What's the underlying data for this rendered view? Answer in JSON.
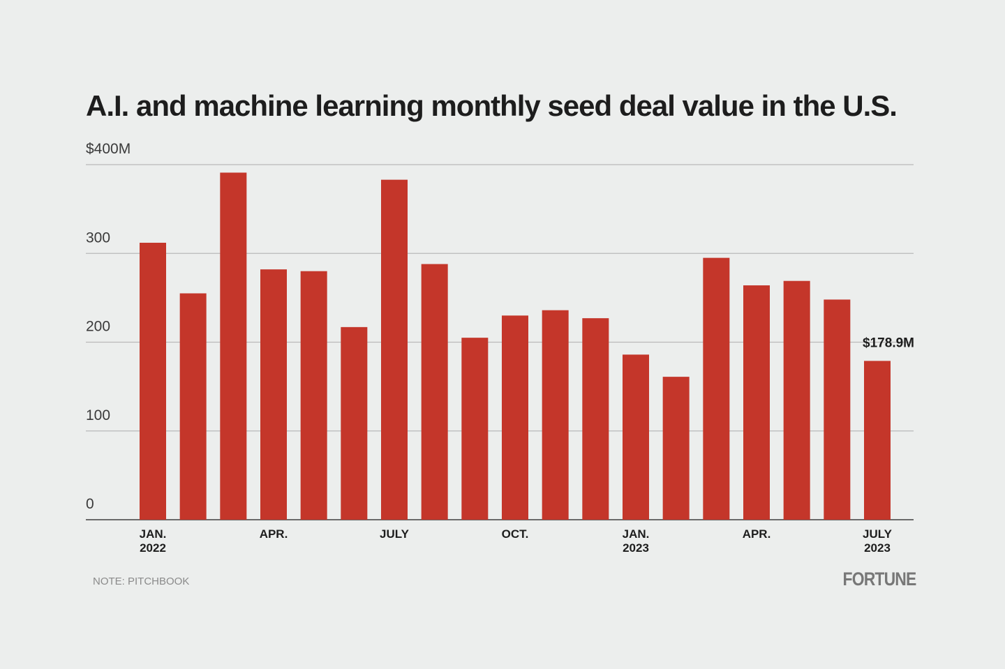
{
  "chart_data": {
    "type": "bar",
    "title": "A.I. and machine learning monthly seed deal value in the U.S.",
    "categories": [
      "JAN.\n2022",
      null,
      null,
      "APR.",
      null,
      null,
      "JULY",
      null,
      null,
      "OCT.",
      null,
      null,
      "JAN.\n2023",
      null,
      null,
      "APR.",
      null,
      null,
      "JULY\n2023"
    ],
    "values": [
      312,
      255,
      391,
      282,
      280,
      217,
      383,
      288,
      205,
      230,
      236,
      227,
      186,
      161,
      295,
      264,
      269,
      248,
      178.9
    ],
    "value_labels": [
      null,
      null,
      null,
      null,
      null,
      null,
      null,
      null,
      null,
      null,
      null,
      null,
      null,
      null,
      null,
      null,
      null,
      null,
      "$178.9M"
    ],
    "color": "#c4362a",
    "ylim": [
      0,
      400
    ],
    "yticks": [
      0,
      100,
      200,
      300,
      {
        "value": 400,
        "label": "$400M"
      }
    ],
    "grid": true
  },
  "note": "NOTE: PITCHBOOK",
  "brand": "FORTUNE"
}
